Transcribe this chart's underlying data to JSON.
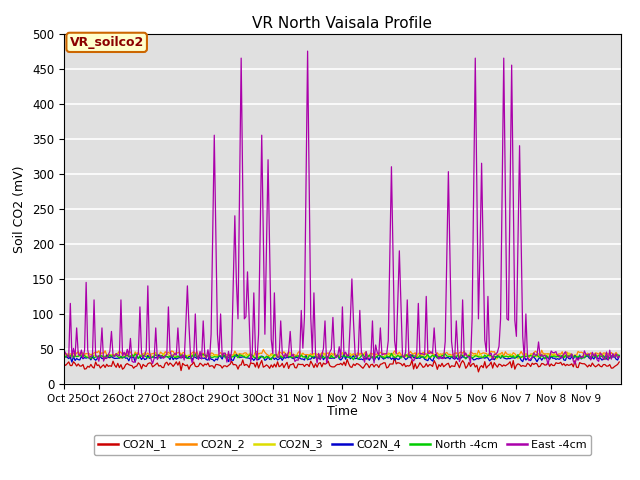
{
  "title": "VR North Vaisala Profile",
  "ylabel": "Soil CO2 (mV)",
  "xlabel": "Time",
  "annotation": "VR_soilco2",
  "ylim": [
    0,
    500
  ],
  "tick_labels": [
    "Oct 25",
    "Oct 26",
    "Oct 27",
    "Oct 28",
    "Oct 29",
    "Oct 30",
    "Oct 31",
    "Nov 1",
    "Nov 2",
    "Nov 3",
    "Nov 4",
    "Nov 5",
    "Nov 6",
    "Nov 7",
    "Nov 8",
    "Nov 9"
  ],
  "series_colors": {
    "CO2N_1": "#cc0000",
    "CO2N_2": "#ff8800",
    "CO2N_3": "#dddd00",
    "CO2N_4": "#0000cc",
    "North_4cm": "#00cc00",
    "East_4cm": "#aa00aa"
  },
  "background_color": "#e0e0e0",
  "grid_color": "#ffffff",
  "title_fontsize": 11,
  "annotation_facecolor": "#ffffcc",
  "annotation_edgecolor": "#cc6600",
  "yticks": [
    0,
    50,
    100,
    150,
    200,
    250,
    300,
    350,
    400,
    450,
    500
  ]
}
